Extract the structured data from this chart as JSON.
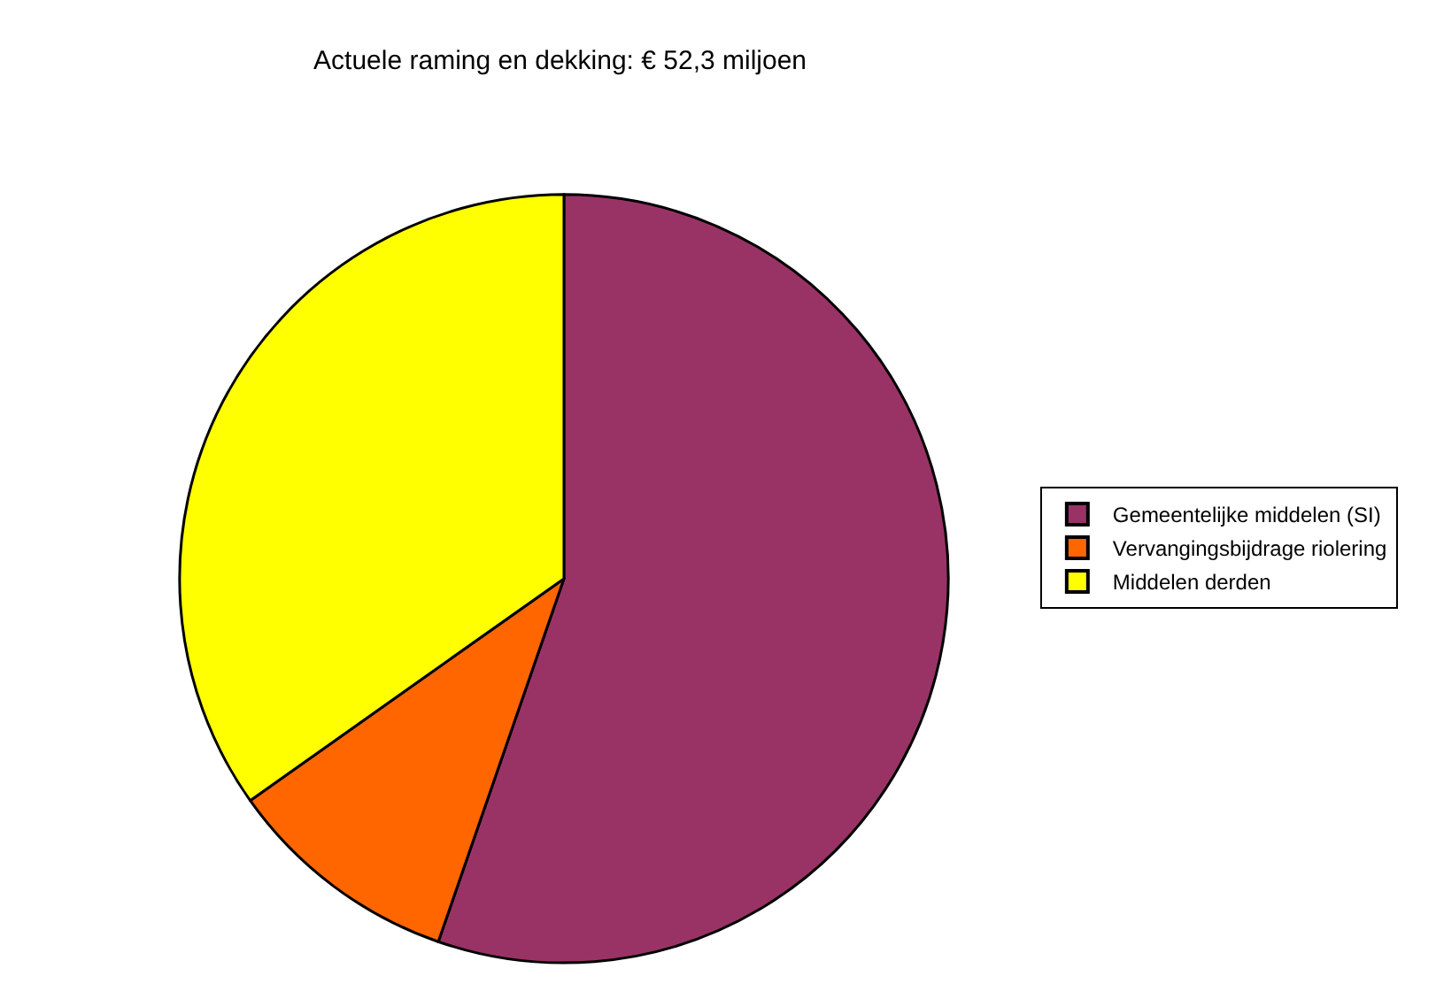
{
  "chart_data": {
    "type": "pie",
    "title": "Actuele raming en dekking: € 52,3 miljoen",
    "categories": [
      "Gemeentelijke middelen (SI)",
      "Vervangingsbijdrage riolering",
      "Middelen derden"
    ],
    "values": [
      55.3,
      9.9,
      34.8
    ],
    "colors": [
      "#993366",
      "#ff6600",
      "#ffff00"
    ],
    "legend": "right"
  }
}
